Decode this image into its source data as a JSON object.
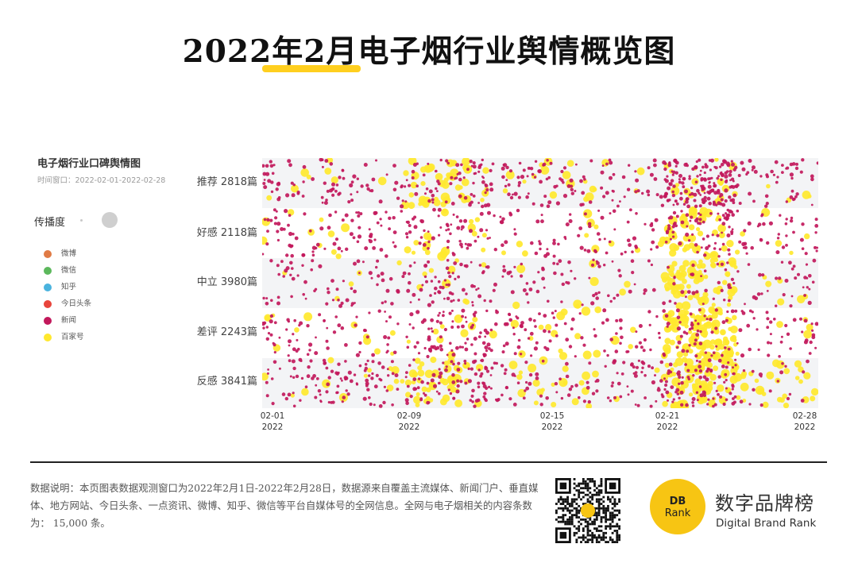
{
  "page": {
    "title": "2022年2月电子烟行业舆情概览图",
    "footer_note": "数据说明：本页图表数据观测窗口为2022年2月1日-2022年2月28日，数据源来自覆盖主流媒体、新闻门户、垂直媒体、地方网站、今日头条、一点资讯、微博、知乎、微信等平台自媒体号的全网信息。全网与电子烟相关的内容条数为： 15,000 条。",
    "brand_logo_line1": "DB",
    "brand_logo_line2": "Rank",
    "brand_cn": "数字品牌榜",
    "brand_en": "Digital Brand Rank"
  },
  "chart_data": {
    "type": "scatter",
    "title": "电子烟行业口碑舆情图",
    "subtitle": "时间窗口：2022-02-01-2022-02-28",
    "size_legend_label": "传播度",
    "legend": [
      {
        "name": "微博",
        "color": "#e07b45"
      },
      {
        "name": "微信",
        "color": "#5cb85c"
      },
      {
        "name": "知乎",
        "color": "#4ab3de"
      },
      {
        "name": "今日头条",
        "color": "#e8453c"
      },
      {
        "name": "新闻",
        "color": "#c2185b"
      },
      {
        "name": "百家号",
        "color": "#ffe82e"
      }
    ],
    "categories": [
      {
        "label": "推荐 2818篇",
        "count": 2818
      },
      {
        "label": "好感 2118篇",
        "count": 2118
      },
      {
        "label": "中立 3980篇",
        "count": 3980
      },
      {
        "label": "差评 2243篇",
        "count": 2243
      },
      {
        "label": "反感 3841篇",
        "count": 3841
      }
    ],
    "x_range": [
      "2022-02-01",
      "2022-02-28"
    ],
    "x_ticks": [
      {
        "date": "02-01",
        "year": "2022",
        "day": 1
      },
      {
        "date": "02-09",
        "year": "2022",
        "day": 9
      },
      {
        "date": "02-15",
        "year": "2022",
        "day": 15
      },
      {
        "date": "02-21",
        "year": "2022",
        "day": 21
      },
      {
        "date": "02-28",
        "year": "2022",
        "day": 28
      }
    ],
    "grid": "alternating-bands",
    "legend_placement": "left"
  }
}
